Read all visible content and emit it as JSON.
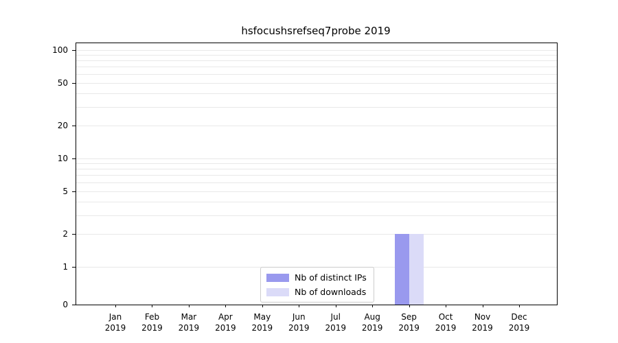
{
  "title": "hsfocushsrefseq7probe 2019",
  "chart_data": {
    "type": "bar",
    "title": "hsfocushsrefseq7probe 2019",
    "categories": [
      "Jan",
      "Feb",
      "Mar",
      "Apr",
      "May",
      "Jun",
      "Jul",
      "Aug",
      "Sep",
      "Oct",
      "Nov",
      "Dec"
    ],
    "category_year": "2019",
    "series": [
      {
        "name": "Nb of distinct IPs",
        "color": "#9999ee",
        "values": [
          0,
          0,
          0,
          0,
          0,
          0,
          0,
          0,
          2,
          0,
          0,
          0
        ]
      },
      {
        "name": "Nb of downloads",
        "color": "#dbdbf8",
        "values": [
          0,
          0,
          0,
          0,
          0,
          0,
          0,
          0,
          2,
          0,
          0,
          0
        ]
      }
    ],
    "yscale": "symlog",
    "yticks": [
      0,
      1,
      2,
      5,
      10,
      20,
      50,
      100
    ],
    "ylim": [
      0,
      110
    ],
    "xlabel": "",
    "ylabel": "",
    "grid": "horizontal-minor",
    "legend_position": "lower-center"
  }
}
